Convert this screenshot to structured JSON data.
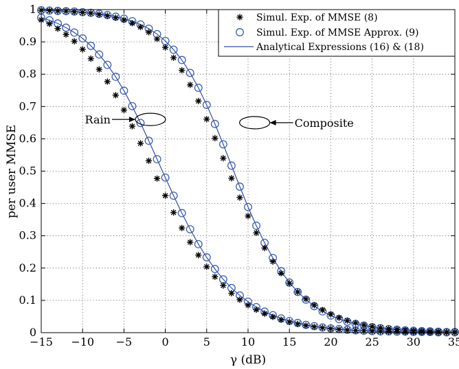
{
  "chart_data": {
    "type": "line",
    "xlabel": "γ (dB)",
    "ylabel": "per user MMSE",
    "xlim": [
      -15,
      35
    ],
    "ylim": [
      0,
      1
    ],
    "xticks": [
      -15,
      -10,
      -5,
      0,
      5,
      10,
      15,
      20,
      25,
      30,
      35
    ],
    "yticks": [
      0,
      0.1,
      0.2,
      0.3,
      0.4,
      0.5,
      0.6,
      0.7,
      0.8,
      0.9,
      1
    ],
    "xtick_labels": [
      "−15",
      "−10",
      "−5",
      "0",
      "5",
      "10",
      "15",
      "20",
      "25",
      "30",
      "35"
    ],
    "ytick_labels": [
      "0",
      "0.1",
      "0.2",
      "0.3",
      "0.4",
      "0.5",
      "0.6",
      "0.7",
      "0.8",
      "0.9",
      "1"
    ],
    "grid": true,
    "legend_position": "top-right",
    "legend": [
      {
        "label": "Simul. Exp. of MMSE (8)",
        "marker": "asterisk"
      },
      {
        "label": "Simul. Exp. of MMSE Approx. (9)",
        "marker": "circle"
      },
      {
        "label": "Analytical Expressions (16) & (18)",
        "marker": "line"
      }
    ],
    "annotations": [
      {
        "text": "Rain",
        "target_x": -1.8,
        "target_y": 0.66
      },
      {
        "text": "Composite",
        "target_x": 10.8,
        "target_y": 0.65
      }
    ],
    "colors": {
      "analytical": "#2f4fa8",
      "approx_marker": "#3a5fb3",
      "exact_marker": "#000000"
    },
    "x": [
      -15,
      -14,
      -13,
      -12,
      -11,
      -10,
      -9,
      -8,
      -7,
      -6,
      -5,
      -4,
      -3,
      -2,
      -1,
      0,
      1,
      2,
      3,
      4,
      5,
      6,
      7,
      8,
      9,
      10,
      11,
      12,
      13,
      14,
      15,
      16,
      17,
      18,
      19,
      20,
      21,
      22,
      23,
      24,
      25,
      26,
      27,
      28,
      29,
      30,
      31,
      32,
      33,
      34,
      35
    ],
    "series": [
      {
        "group": "Rain",
        "kind": "analytical",
        "values": [
          0.975,
          0.967,
          0.957,
          0.944,
          0.929,
          0.911,
          0.888,
          0.861,
          0.829,
          0.792,
          0.749,
          0.701,
          0.649,
          0.594,
          0.537,
          0.48,
          0.424,
          0.37,
          0.32,
          0.274,
          0.233,
          0.197,
          0.165,
          0.138,
          0.115,
          0.096,
          0.079,
          0.065,
          0.054,
          0.044,
          0.036,
          0.03,
          0.024,
          0.02,
          0.016,
          0.013,
          0.011,
          0.009,
          0.007,
          0.006,
          0.005,
          0.004,
          0.004,
          0.003,
          0.003,
          0.002,
          0.002,
          0.002,
          0.001,
          0.001,
          0.001
        ]
      },
      {
        "group": "Rain",
        "kind": "approx",
        "values": [
          0.975,
          0.967,
          0.957,
          0.944,
          0.929,
          0.911,
          0.888,
          0.861,
          0.829,
          0.792,
          0.749,
          0.701,
          0.649,
          0.594,
          0.537,
          0.48,
          0.424,
          0.37,
          0.32,
          0.274,
          0.233,
          0.197,
          0.165,
          0.138,
          0.115,
          0.096,
          0.079,
          0.065,
          0.054,
          0.044,
          0.036,
          0.03,
          0.024,
          0.02,
          0.016,
          0.013,
          0.011,
          0.009,
          0.007,
          0.006,
          0.005,
          0.004,
          0.004,
          0.003,
          0.003,
          0.002,
          0.002,
          0.002,
          0.001,
          0.001,
          0.001
        ]
      },
      {
        "group": "Rain",
        "kind": "exact",
        "values": [
          0.968,
          0.956,
          0.941,
          0.923,
          0.902,
          0.877,
          0.848,
          0.815,
          0.777,
          0.735,
          0.689,
          0.639,
          0.586,
          0.532,
          0.477,
          0.424,
          0.372,
          0.324,
          0.28,
          0.24,
          0.204,
          0.173,
          0.146,
          0.122,
          0.102,
          0.085,
          0.071,
          0.059,
          0.049,
          0.04,
          0.033,
          0.027,
          0.022,
          0.018,
          0.015,
          0.012,
          0.01,
          0.008,
          0.007,
          0.006,
          0.005,
          0.004,
          0.003,
          0.003,
          0.002,
          0.002,
          0.002,
          0.001,
          0.001,
          0.001,
          0.001
        ]
      },
      {
        "group": "Composite",
        "kind": "analytical",
        "values": [
          0.998,
          0.997,
          0.996,
          0.995,
          0.994,
          0.992,
          0.99,
          0.987,
          0.983,
          0.978,
          0.972,
          0.964,
          0.954,
          0.941,
          0.924,
          0.903,
          0.876,
          0.844,
          0.804,
          0.758,
          0.705,
          0.646,
          0.583,
          0.517,
          0.452,
          0.389,
          0.331,
          0.278,
          0.231,
          0.19,
          0.155,
          0.126,
          0.102,
          0.082,
          0.066,
          0.053,
          0.042,
          0.034,
          0.027,
          0.022,
          0.017,
          0.014,
          0.011,
          0.009,
          0.007,
          0.006,
          0.005,
          0.004,
          0.003,
          0.002,
          0.002
        ]
      },
      {
        "group": "Composite",
        "kind": "approx",
        "values": [
          0.998,
          0.997,
          0.996,
          0.995,
          0.994,
          0.992,
          0.99,
          0.987,
          0.983,
          0.978,
          0.972,
          0.964,
          0.954,
          0.941,
          0.924,
          0.903,
          0.876,
          0.844,
          0.804,
          0.758,
          0.705,
          0.646,
          0.583,
          0.517,
          0.452,
          0.389,
          0.331,
          0.278,
          0.231,
          0.19,
          0.155,
          0.126,
          0.102,
          0.082,
          0.066,
          0.053,
          0.042,
          0.034,
          0.027,
          0.022,
          0.017,
          0.014,
          0.011,
          0.009,
          0.007,
          0.006,
          0.005,
          0.004,
          0.003,
          0.002,
          0.002
        ]
      },
      {
        "group": "Composite",
        "kind": "exact",
        "values": [
          0.998,
          0.997,
          0.996,
          0.995,
          0.993,
          0.991,
          0.989,
          0.985,
          0.981,
          0.975,
          0.968,
          0.958,
          0.946,
          0.93,
          0.909,
          0.883,
          0.851,
          0.812,
          0.767,
          0.717,
          0.661,
          0.602,
          0.54,
          0.478,
          0.418,
          0.361,
          0.309,
          0.262,
          0.22,
          0.184,
          0.153,
          0.126,
          0.104,
          0.085,
          0.07,
          0.057,
          0.046,
          0.037,
          0.03,
          0.024,
          0.019,
          0.015,
          0.012,
          0.01,
          0.008,
          0.006,
          0.005,
          0.004,
          0.003,
          0.002,
          0.002
        ]
      }
    ]
  }
}
